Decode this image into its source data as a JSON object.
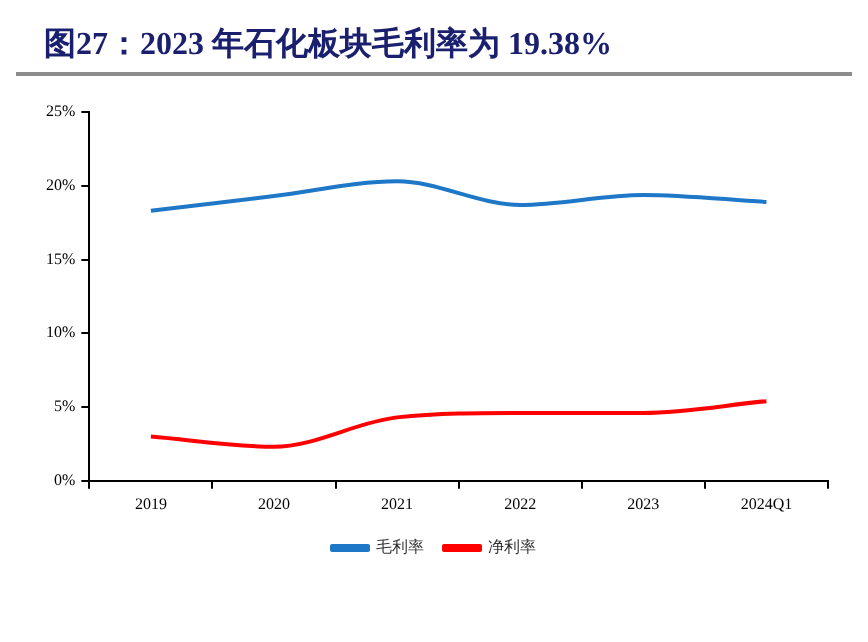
{
  "chart_data": {
    "type": "line",
    "title": "图27：2023 年石化板块毛利率为 19.38%",
    "categories": [
      "2019",
      "2020",
      "2021",
      "2022",
      "2023",
      "2024Q1"
    ],
    "series": [
      {
        "name": "毛利率",
        "color": "#1f77c8",
        "values": [
          18.3,
          19.3,
          20.3,
          18.7,
          19.38,
          18.9
        ]
      },
      {
        "name": "净利率",
        "color": "#ff0000",
        "values": [
          3.0,
          2.3,
          4.3,
          4.6,
          4.6,
          5.4
        ]
      }
    ],
    "ylim": [
      0,
      25
    ],
    "yticks": [
      {
        "value": 0,
        "label": "0%"
      },
      {
        "value": 5,
        "label": "5%"
      },
      {
        "value": 10,
        "label": "10%"
      },
      {
        "value": 15,
        "label": "15%"
      },
      {
        "value": 20,
        "label": "20%"
      },
      {
        "value": 25,
        "label": "25%"
      }
    ],
    "grid": false,
    "legend": "bottom",
    "marker": "none",
    "line_style": "solid"
  }
}
